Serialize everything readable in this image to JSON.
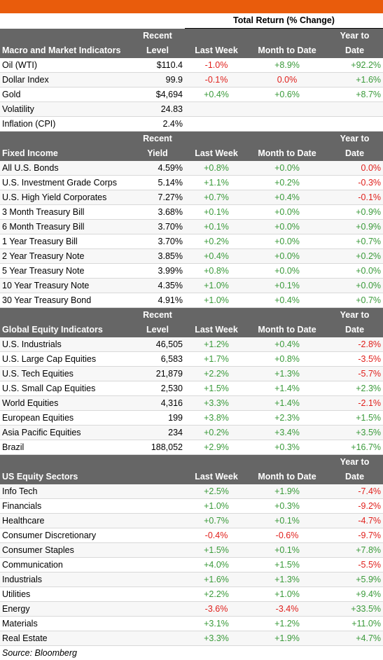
{
  "header_title": "Total Return (% Change)",
  "columns": {
    "recent": "Recent",
    "level": "Level",
    "yield": "Yield",
    "last_week": "Last Week",
    "month_to_date": "Month to Date",
    "year_to": "Year to",
    "date": "Date"
  },
  "sections": [
    {
      "title": "Macro and Market Indicators",
      "recent_second": "Level",
      "rows": [
        {
          "name": "Oil (WTI)",
          "level": "$110.4",
          "lw": "-1.0%",
          "mtd": "+8.9%",
          "ytd": "+92.2%"
        },
        {
          "name": "Dollar Index",
          "level": "99.9",
          "lw": "-0.1%",
          "mtd": "0.0%",
          "ytd": "+1.6%"
        },
        {
          "name": "Gold",
          "level": "$4,694",
          "lw": "+0.4%",
          "mtd": "+0.6%",
          "ytd": "+8.7%"
        },
        {
          "name": "Volatility",
          "level": "24.83",
          "lw": "",
          "mtd": "",
          "ytd": ""
        },
        {
          "name": "Inflation (CPI)",
          "level": "2.4%",
          "lw": "",
          "mtd": "",
          "ytd": ""
        }
      ]
    },
    {
      "title": "Fixed Income",
      "recent_second": "Yield",
      "rows": [
        {
          "name": "All U.S. Bonds",
          "level": "4.59%",
          "lw": "+0.8%",
          "mtd": "+0.0%",
          "ytd": "0.0%"
        },
        {
          "name": "U.S. Investment Grade Corps",
          "level": "5.14%",
          "lw": "+1.1%",
          "mtd": "+0.2%",
          "ytd": "-0.3%"
        },
        {
          "name": "U.S. High Yield Corporates",
          "level": "7.27%",
          "lw": "+0.7%",
          "mtd": "+0.4%",
          "ytd": "-0.1%"
        },
        {
          "name": "3 Month Treasury Bill",
          "level": "3.68%",
          "lw": "+0.1%",
          "mtd": "+0.0%",
          "ytd": "+0.9%"
        },
        {
          "name": "6 Month Treasury Bill",
          "level": "3.70%",
          "lw": "+0.1%",
          "mtd": "+0.0%",
          "ytd": "+0.9%"
        },
        {
          "name": "1 Year Treasury Bill",
          "level": "3.70%",
          "lw": "+0.2%",
          "mtd": "+0.0%",
          "ytd": "+0.7%"
        },
        {
          "name": "2 Year Treasury Note",
          "level": "3.85%",
          "lw": "+0.4%",
          "mtd": "+0.0%",
          "ytd": "+0.2%"
        },
        {
          "name": "5 Year Treasury Note",
          "level": "3.99%",
          "lw": "+0.8%",
          "mtd": "+0.0%",
          "ytd": "+0.0%"
        },
        {
          "name": "10 Year Treasury Note",
          "level": "4.35%",
          "lw": "+1.0%",
          "mtd": "+0.1%",
          "ytd": "+0.0%"
        },
        {
          "name": "30 Year Treasury Bond",
          "level": "4.91%",
          "lw": "+1.0%",
          "mtd": "+0.4%",
          "ytd": "+0.7%"
        }
      ]
    },
    {
      "title": "Global Equity Indicators",
      "recent_second": "Level",
      "rows": [
        {
          "name": "U.S. Industrials",
          "level": "46,505",
          "lw": "+1.2%",
          "mtd": "+0.4%",
          "ytd": "-2.8%"
        },
        {
          "name": "U.S. Large Cap Equities",
          "level": "6,583",
          "lw": "+1.7%",
          "mtd": "+0.8%",
          "ytd": "-3.5%"
        },
        {
          "name": "U.S. Tech Equities",
          "level": "21,879",
          "lw": "+2.2%",
          "mtd": "+1.3%",
          "ytd": "-5.7%"
        },
        {
          "name": "U.S. Small Cap Equities",
          "level": "2,530",
          "lw": "+1.5%",
          "mtd": "+1.4%",
          "ytd": "+2.3%"
        },
        {
          "name": "World Equities",
          "level": "4,316",
          "lw": "+3.3%",
          "mtd": "+1.4%",
          "ytd": "-2.1%"
        },
        {
          "name": "European Equities",
          "level": "199",
          "lw": "+3.8%",
          "mtd": "+2.3%",
          "ytd": "+1.5%"
        },
        {
          "name": "Asia Pacific Equities",
          "level": "234",
          "lw": "+0.2%",
          "mtd": "+3.4%",
          "ytd": "+3.5%"
        },
        {
          "name": "Brazil",
          "level": "188,052",
          "lw": "+2.9%",
          "mtd": "+0.3%",
          "ytd": "+16.7%"
        }
      ]
    },
    {
      "title": "US Equity Sectors",
      "recent_second": "",
      "rows": [
        {
          "name": "Info Tech",
          "level": "",
          "lw": "+2.5%",
          "mtd": "+1.9%",
          "ytd": "-7.4%"
        },
        {
          "name": "Financials",
          "level": "",
          "lw": "+1.0%",
          "mtd": "+0.3%",
          "ytd": "-9.2%"
        },
        {
          "name": "Healthcare",
          "level": "",
          "lw": "+0.7%",
          "mtd": "+0.1%",
          "ytd": "-4.7%"
        },
        {
          "name": "Consumer Discretionary",
          "level": "",
          "lw": "-0.4%",
          "mtd": "-0.6%",
          "ytd": "-9.7%"
        },
        {
          "name": "Consumer Staples",
          "level": "",
          "lw": "+1.5%",
          "mtd": "+0.1%",
          "ytd": "+7.8%"
        },
        {
          "name": "Communication",
          "level": "",
          "lw": "+4.0%",
          "mtd": "+1.5%",
          "ytd": "-5.5%"
        },
        {
          "name": "Industrials",
          "level": "",
          "lw": "+1.6%",
          "mtd": "+1.3%",
          "ytd": "+5.9%"
        },
        {
          "name": "Utilities",
          "level": "",
          "lw": "+2.2%",
          "mtd": "+1.0%",
          "ytd": "+9.4%"
        },
        {
          "name": "Energy",
          "level": "",
          "lw": "-3.6%",
          "mtd": "-3.4%",
          "ytd": "+33.5%"
        },
        {
          "name": "Materials",
          "level": "",
          "lw": "+3.1%",
          "mtd": "+1.2%",
          "ytd": "+11.0%"
        },
        {
          "name": "Real Estate",
          "level": "",
          "lw": "+3.3%",
          "mtd": "+1.9%",
          "ytd": "+4.7%"
        }
      ]
    }
  ],
  "source": "Source: Bloomberg",
  "colors": {
    "accent_bar": "#e95c0c",
    "header_bg": "#666666",
    "positive": "#3a9a3a",
    "negative": "#e0201c"
  }
}
